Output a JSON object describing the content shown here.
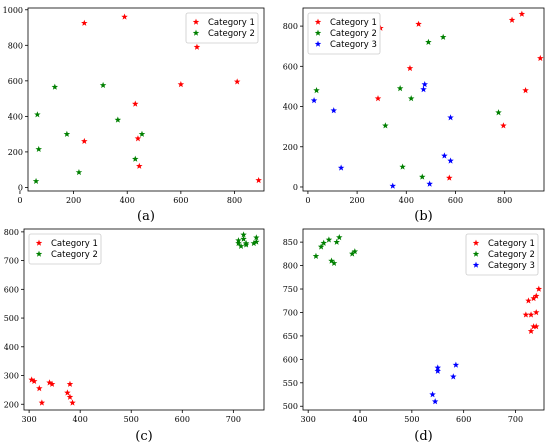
{
  "colors": {
    "Category 1": "#ff0000",
    "Category 2": "#008000",
    "Category 3": "#0000ff"
  },
  "chart_data": [
    {
      "type": "scatter",
      "panel_label": "(a)",
      "marker": "star",
      "legend_position": "upper-right",
      "xlim": [
        30,
        910
      ],
      "ylim": [
        -20,
        1010
      ],
      "xticks": [
        0,
        200,
        400,
        600,
        800
      ],
      "yticks": [
        0,
        200,
        400,
        600,
        800,
        1000
      ],
      "series": [
        {
          "name": "Category 1",
          "points": [
            [
              240,
              925
            ],
            [
              390,
              960
            ],
            [
              660,
              790
            ],
            [
              810,
              595
            ],
            [
              600,
              580
            ],
            [
              430,
              470
            ],
            [
              440,
              275
            ],
            [
              240,
              260
            ],
            [
              445,
              120
            ],
            [
              890,
              40
            ]
          ]
        },
        {
          "name": "Category 2",
          "points": [
            [
              130,
              565
            ],
            [
              310,
              575
            ],
            [
              65,
              410
            ],
            [
              365,
              380
            ],
            [
              70,
              215
            ],
            [
              175,
              300
            ],
            [
              455,
              300
            ],
            [
              430,
              160
            ],
            [
              220,
              85
            ],
            [
              60,
              35
            ]
          ]
        }
      ]
    },
    {
      "type": "scatter",
      "panel_label": "(b)",
      "marker": "star",
      "legend_position": "upper-left",
      "xlim": [
        -20,
        960
      ],
      "ylim": [
        -20,
        890
      ],
      "xticks": [
        0,
        200,
        400,
        600,
        800
      ],
      "yticks": [
        0,
        200,
        400,
        600,
        800
      ],
      "series": [
        {
          "name": "Category 1",
          "points": [
            [
              295,
              790
            ],
            [
              450,
              810
            ],
            [
              870,
              860
            ],
            [
              830,
              830
            ],
            [
              945,
              640
            ],
            [
              415,
              590
            ],
            [
              285,
              440
            ],
            [
              885,
              480
            ],
            [
              795,
              305
            ],
            [
              575,
              45
            ]
          ]
        },
        {
          "name": "Category 2",
          "points": [
            [
              165,
              680
            ],
            [
              490,
              720
            ],
            [
              550,
              745
            ],
            [
              35,
              480
            ],
            [
              375,
              490
            ],
            [
              420,
              440
            ],
            [
              315,
              305
            ],
            [
              775,
              370
            ],
            [
              385,
              100
            ],
            [
              465,
              50
            ]
          ]
        },
        {
          "name": "Category 3",
          "points": [
            [
              25,
              430
            ],
            [
              105,
              380
            ],
            [
              470,
              485
            ],
            [
              475,
              510
            ],
            [
              580,
              345
            ],
            [
              555,
              155
            ],
            [
              580,
              130
            ],
            [
              135,
              95
            ],
            [
              345,
              5
            ],
            [
              495,
              15
            ]
          ]
        }
      ]
    },
    {
      "type": "scatter",
      "panel_label": "(c)",
      "marker": "star",
      "legend_position": "upper-left",
      "xlim": [
        290,
        760
      ],
      "ylim": [
        180,
        810
      ],
      "xticks": [
        300,
        400,
        500,
        600,
        700
      ],
      "yticks": [
        200,
        300,
        400,
        500,
        600,
        700,
        800
      ],
      "series": [
        {
          "name": "Category 1",
          "points": [
            [
              305,
              285
            ],
            [
              310,
              280
            ],
            [
              320,
              255
            ],
            [
              325,
              205
            ],
            [
              340,
              275
            ],
            [
              345,
              270
            ],
            [
              375,
              240
            ],
            [
              380,
              270
            ],
            [
              380,
              225
            ],
            [
              385,
              205
            ]
          ]
        },
        {
          "name": "Category 2",
          "points": [
            [
              710,
              760
            ],
            [
              710,
              770
            ],
            [
              720,
              790
            ],
            [
              720,
              775
            ],
            [
              725,
              755
            ],
            [
              725,
              760
            ],
            [
              740,
              760
            ],
            [
              745,
              780
            ],
            [
              745,
              765
            ],
            [
              715,
              750
            ]
          ]
        }
      ]
    },
    {
      "type": "scatter",
      "panel_label": "(d)",
      "marker": "star",
      "legend_position": "upper-right",
      "xlim": [
        290,
        755
      ],
      "ylim": [
        492,
        878
      ],
      "xticks": [
        300,
        400,
        500,
        600,
        700
      ],
      "yticks": [
        500,
        550,
        600,
        650,
        700,
        750,
        800,
        850
      ],
      "series": [
        {
          "name": "Category 1",
          "points": [
            [
              720,
              695
            ],
            [
              725,
              725
            ],
            [
              730,
              695
            ],
            [
              735,
              730
            ],
            [
              740,
              735
            ],
            [
              745,
              750
            ],
            [
              730,
              660
            ],
            [
              735,
              670
            ],
            [
              740,
              670
            ],
            [
              740,
              700
            ]
          ]
        },
        {
          "name": "Category 2",
          "points": [
            [
              315,
              820
            ],
            [
              325,
              840
            ],
            [
              340,
              855
            ],
            [
              345,
              810
            ],
            [
              350,
              805
            ],
            [
              360,
              860
            ],
            [
              385,
              825
            ],
            [
              390,
              830
            ],
            [
              330,
              848
            ],
            [
              355,
              850
            ]
          ]
        },
        {
          "name": "Category 3",
          "points": [
            [
              540,
              525
            ],
            [
              545,
              510
            ],
            [
              550,
              575
            ],
            [
              550,
              582
            ],
            [
              580,
              563
            ],
            [
              585,
              588
            ]
          ]
        }
      ]
    }
  ]
}
